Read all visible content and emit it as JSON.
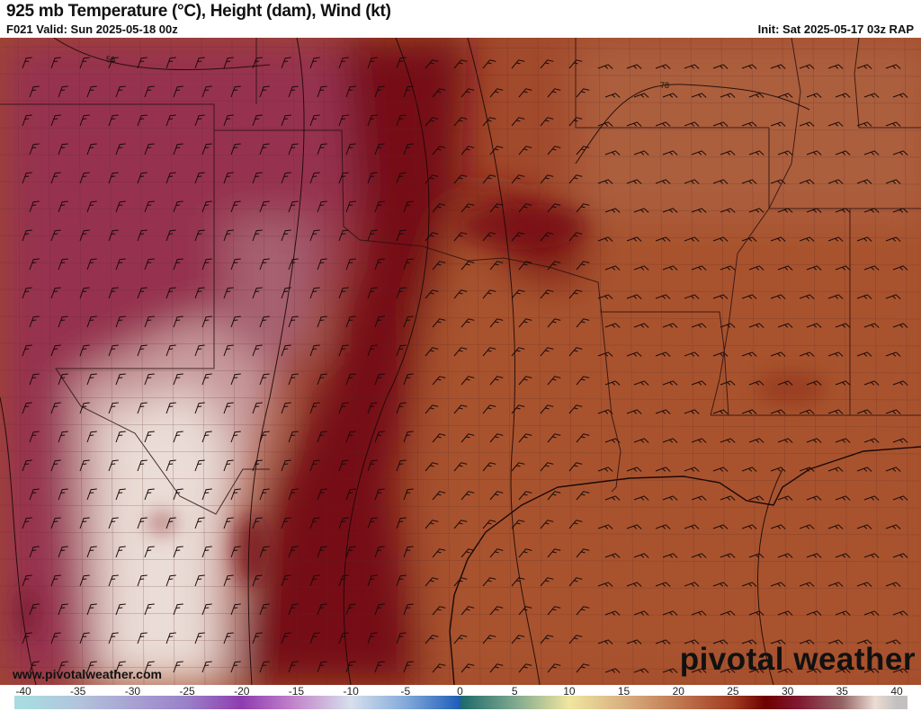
{
  "header": {
    "title": "925 mb Temperature (°C), Height (dam), Wind (kt)",
    "valid": "F021 Valid: Sun 2025-05-18 00z",
    "init": "Init: Sat 2025-05-17 03z RAP"
  },
  "map": {
    "height_contour_labels": [
      "56",
      "78"
    ],
    "watermark_url": "www.pivotalweather.com",
    "logo": "pivotal weather",
    "colors": {
      "cool_magenta": "#9a3256",
      "light_pink": "#eadcd6",
      "dark_red": "#760a10",
      "brown": "#a4502e",
      "light_brown": "#b06a44"
    }
  },
  "colorbar": {
    "unit": "°C",
    "ticks": [
      "-40",
      "-35",
      "-30",
      "-25",
      "-20",
      "-15",
      "-10",
      "-5",
      "0",
      "5",
      "10",
      "15",
      "20",
      "25",
      "30",
      "35",
      "40"
    ],
    "range": [
      -40,
      40
    ],
    "stops": [
      {
        "v": -40,
        "c": "#a8dce0"
      },
      {
        "v": -35,
        "c": "#b2c4dc"
      },
      {
        "v": -30,
        "c": "#a8a2d2"
      },
      {
        "v": -25,
        "c": "#9a80c8"
      },
      {
        "v": -20,
        "c": "#8e3cb0"
      },
      {
        "v": -15,
        "c": "#c488cc"
      },
      {
        "v": -10,
        "c": "#d6e0ec"
      },
      {
        "v": -5,
        "c": "#84aada"
      },
      {
        "v": 0,
        "c": "#1e5cb8"
      },
      {
        "v": 0.1,
        "c": "#1e6a6a"
      },
      {
        "v": 5,
        "c": "#7ea88e"
      },
      {
        "v": 10,
        "c": "#f0e6a0"
      },
      {
        "v": 15,
        "c": "#d8b080"
      },
      {
        "v": 20,
        "c": "#c07850"
      },
      {
        "v": 25,
        "c": "#a03c22"
      },
      {
        "v": 28,
        "c": "#6e0000"
      },
      {
        "v": 31,
        "c": "#801832"
      },
      {
        "v": 35,
        "c": "#946464"
      },
      {
        "v": 38,
        "c": "#ecdcd4"
      },
      {
        "v": 40,
        "c": "#c4c0c0"
      }
    ]
  }
}
